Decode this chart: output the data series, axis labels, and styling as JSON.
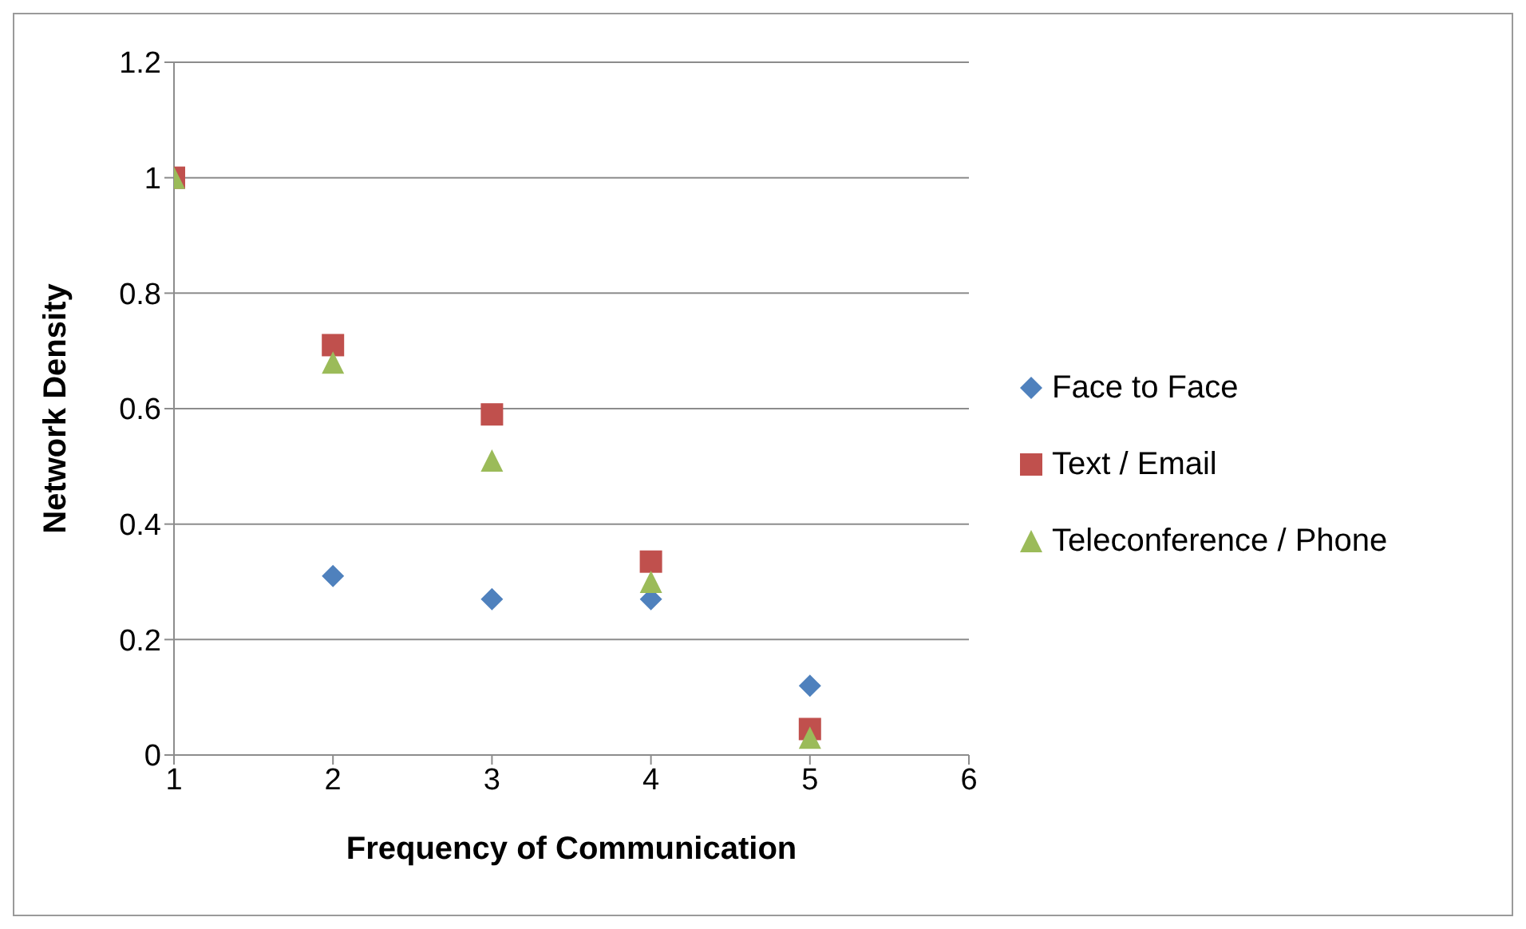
{
  "chart_data": {
    "type": "scatter",
    "xlabel": "Frequency of Communication",
    "ylabel": "Network Density",
    "x": [
      1,
      2,
      3,
      4,
      5
    ],
    "series": [
      {
        "name": "Face to Face",
        "color": "#4f81bd",
        "marker": "diamond",
        "values": [
          null,
          0.31,
          0.27,
          0.27,
          0.12
        ]
      },
      {
        "name": "Text / Email",
        "color": "#c0504d",
        "marker": "square",
        "values": [
          1.0,
          0.71,
          0.59,
          0.335,
          0.045
        ]
      },
      {
        "name": "Teleconference / Phone",
        "color": "#9bbb59",
        "marker": "triangle",
        "values": [
          1.0,
          0.68,
          0.51,
          0.3,
          0.03
        ]
      }
    ],
    "xlim": [
      1,
      6
    ],
    "xticks": [
      1,
      2,
      3,
      4,
      5,
      6
    ],
    "ylim": [
      0,
      1.2
    ],
    "yticks": [
      0,
      0.2,
      0.4,
      0.6,
      0.8,
      1,
      1.2
    ],
    "grid": "y",
    "legend": "right"
  }
}
